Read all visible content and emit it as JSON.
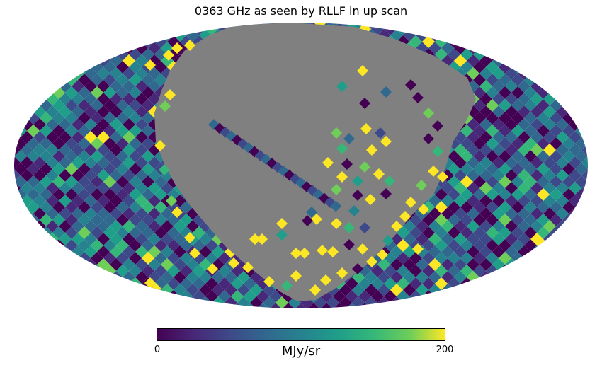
{
  "title": "0363 GHz as seen by RLLF in up scan",
  "colorbar": {
    "min_label": "0",
    "max_label": "200",
    "unit_label": "MJy/sr",
    "colormap": "viridis",
    "range": [
      0,
      200
    ]
  },
  "map": {
    "projection": "mollweide",
    "masked_color": "#808080",
    "background_color": "#ffffff"
  },
  "chart_data": {
    "type": "heatmap",
    "title": "0363 GHz as seen by RLLF in up scan",
    "projection": "mollweide",
    "colorbar_label": "MJy/sr",
    "vmin": 0,
    "vmax": 200,
    "grid": false
  }
}
